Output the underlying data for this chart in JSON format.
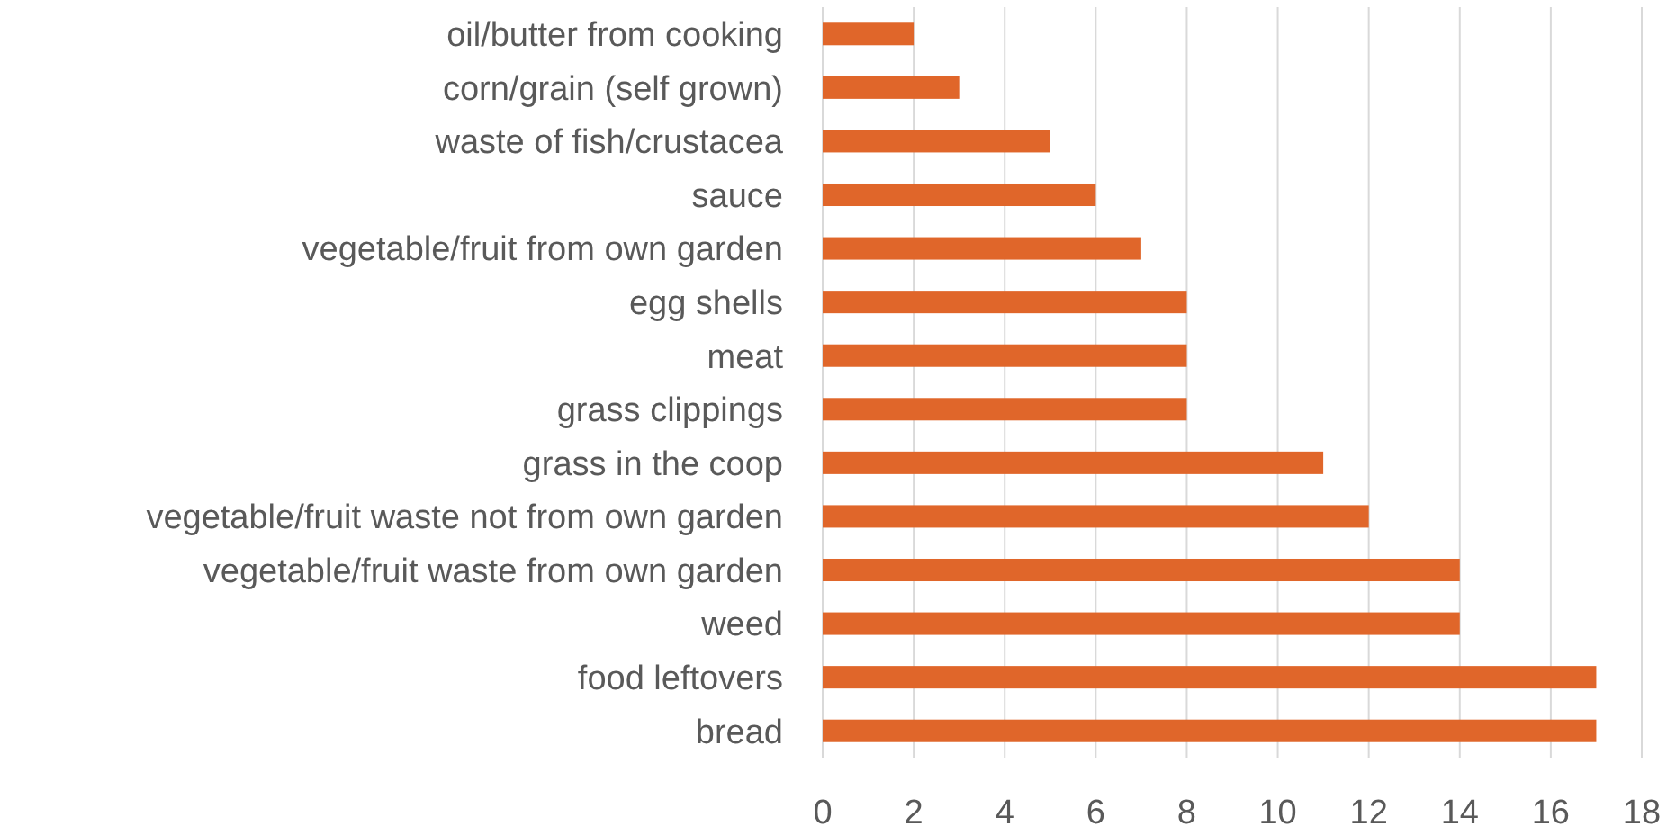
{
  "chart_data": {
    "type": "bar",
    "orientation": "horizontal",
    "categories": [
      "oil/butter from cooking",
      "corn/grain (self grown)",
      "waste of fish/crustacea",
      "sauce",
      "vegetable/fruit from own garden",
      "egg shells",
      "meat",
      "grass clippings",
      "grass in the coop",
      "vegetable/fruit waste not from own garden",
      "vegetable/fruit waste from own garden",
      "weed",
      "food leftovers",
      "bread"
    ],
    "values": [
      2,
      3,
      5,
      6,
      7,
      8,
      8,
      8,
      11,
      12,
      14,
      14,
      17,
      17
    ],
    "color": "#e0662a",
    "xlim": [
      0,
      18
    ],
    "xticks": [
      0,
      2,
      4,
      6,
      8,
      10,
      12,
      14,
      16,
      18
    ],
    "grid": "x"
  }
}
